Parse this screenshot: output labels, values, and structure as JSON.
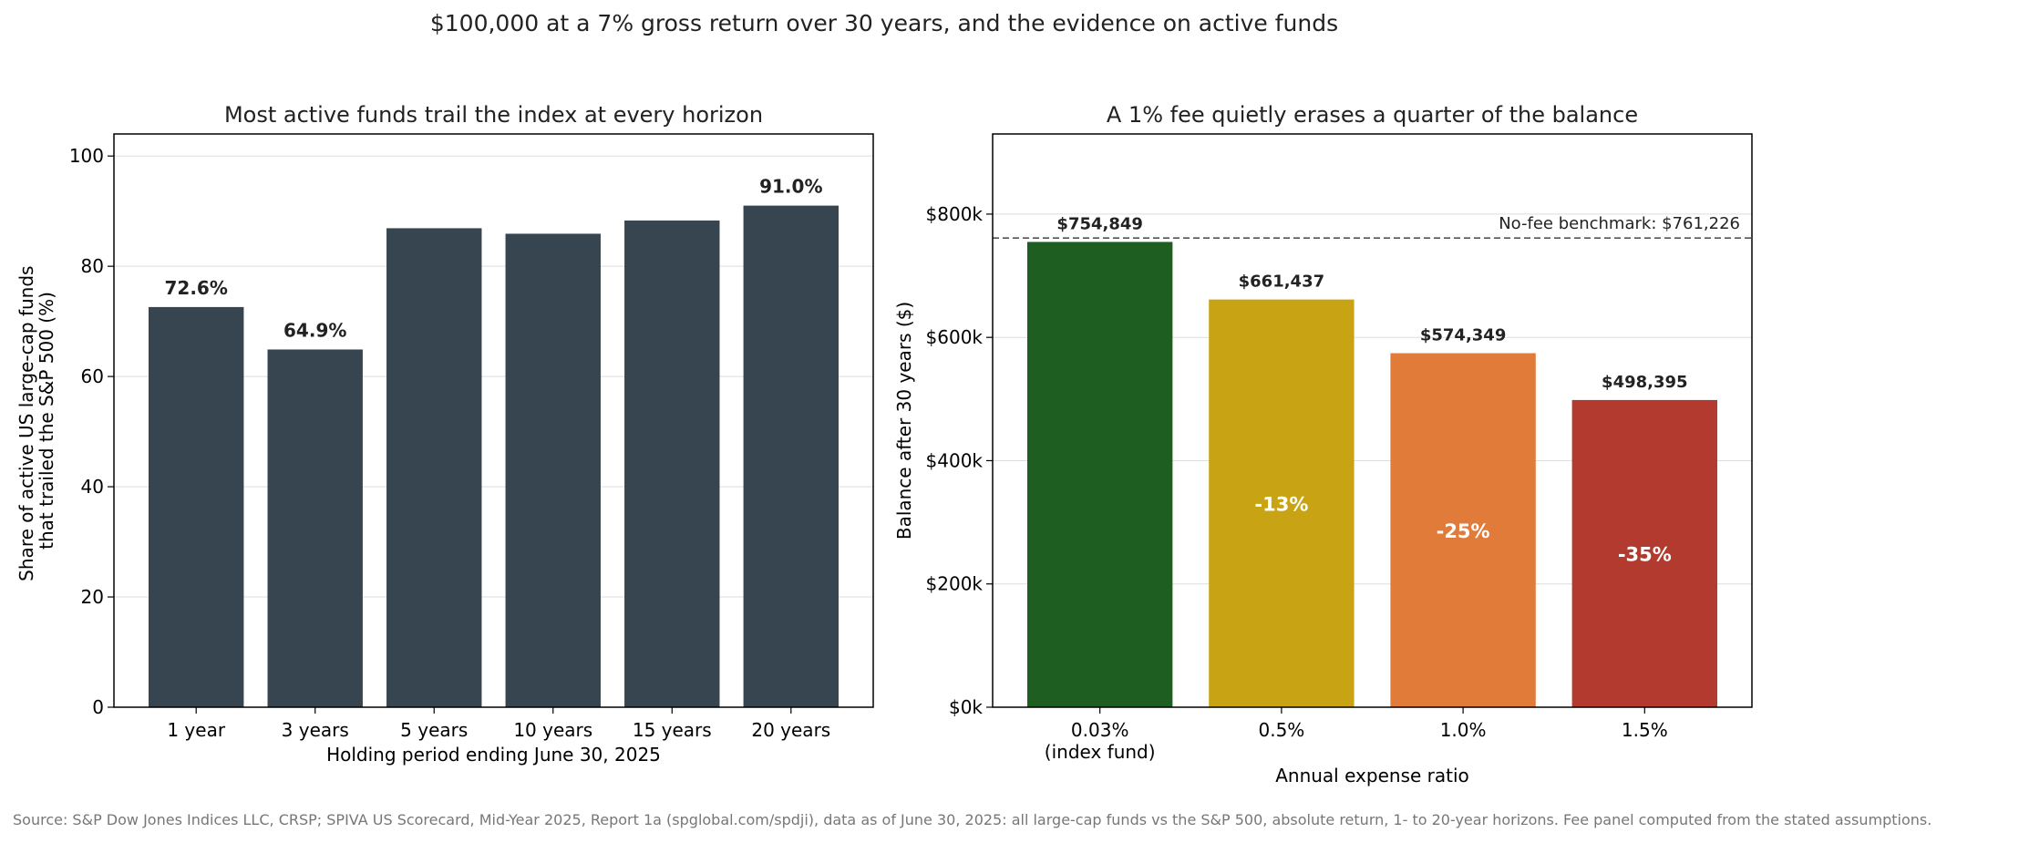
{
  "figure": {
    "title": "$100,000 at a 7% gross return over 30 years, and the evidence on active funds",
    "source": "Source: S&P Dow Jones Indices LLC, CRSP; SPIVA US Scorecard, Mid-Year 2025, Report 1a (spglobal.com/spdji), data as of June 30, 2025: all large-cap funds vs the S&P 500, absolute return, 1- to 20-year horizons. Fee panel computed from the stated assumptions."
  },
  "chart_data": [
    {
      "type": "bar",
      "title": "Most active funds trail the index at every horizon",
      "xlabel": "Holding period ending June 30, 2025",
      "ylabel_lines": [
        "Share of active US large-cap funds",
        "that trailed the S&P 500 (%)"
      ],
      "categories": [
        "1 year",
        "3 years",
        "5 years",
        "10 years",
        "15 years",
        "20 years"
      ],
      "values": [
        72.6,
        64.9,
        86.9,
        85.9,
        88.3,
        91.0
      ],
      "data_labels": [
        "72.6%",
        "64.9%",
        "",
        "",
        "",
        "91.0%"
      ],
      "ylim": [
        0,
        104
      ],
      "yticks": [
        0,
        20,
        40,
        60,
        80,
        100
      ],
      "ytick_labels": [
        "0",
        "20",
        "40",
        "60",
        "80",
        "100"
      ],
      "bar_color": "#36454f",
      "grid": "y"
    },
    {
      "type": "bar",
      "title": "A 1% fee quietly erases a quarter of the balance",
      "xlabel": "Annual expense ratio",
      "ylabel": "Balance after 30 years ($)",
      "categories": [
        [
          "0.03%",
          "(index fund)"
        ],
        [
          "0.5%"
        ],
        [
          "1.0%"
        ],
        [
          "1.5%"
        ]
      ],
      "values": [
        754849,
        661437,
        574349,
        498395
      ],
      "data_labels": [
        "$754,849",
        "$661,437",
        "$574,349",
        "$498,395"
      ],
      "inner_labels": [
        "",
        "-13%",
        "-25%",
        "-35%"
      ],
      "colors": [
        "#1e5e20",
        "#c8a415",
        "#e07b39",
        "#b23a2e"
      ],
      "ylim": [
        0,
        930000
      ],
      "yticks": [
        0,
        200000,
        400000,
        600000,
        800000
      ],
      "ytick_labels": [
        "$0k",
        "$200k",
        "$400k",
        "$600k",
        "$800k"
      ],
      "reference_line": {
        "value": 761226,
        "label": "No-fee benchmark: $761,226",
        "style": "dashed"
      },
      "grid": "y"
    }
  ]
}
